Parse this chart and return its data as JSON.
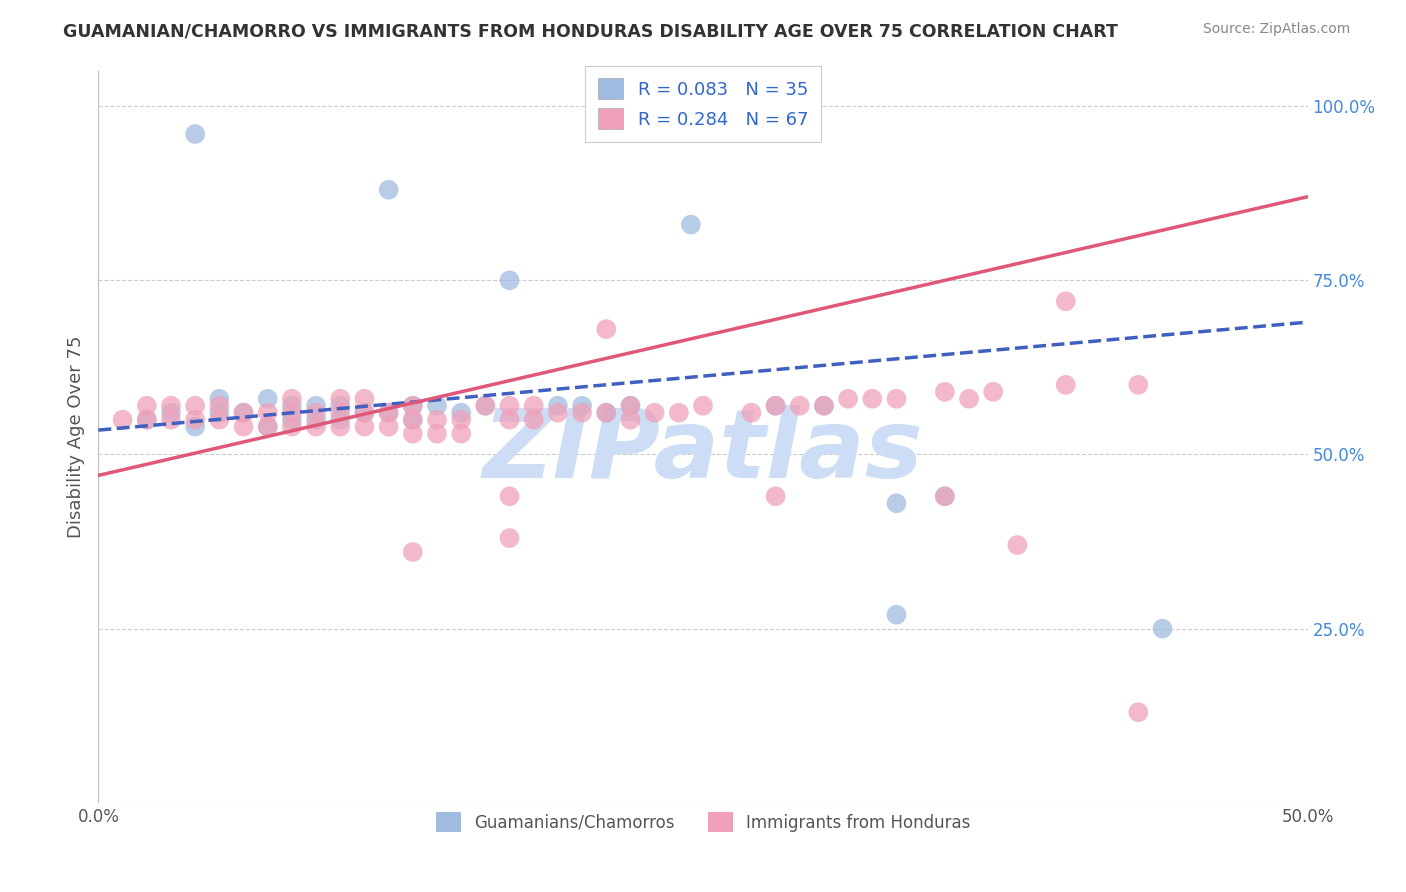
{
  "title": "GUAMANIAN/CHAMORRO VS IMMIGRANTS FROM HONDURAS DISABILITY AGE OVER 75 CORRELATION CHART",
  "source": "Source: ZipAtlas.com",
  "ylabel": "Disability Age Over 75",
  "xlim": [
    0.0,
    0.5
  ],
  "ylim": [
    0.0,
    1.05
  ],
  "ytick_positions": [
    0.25,
    0.5,
    0.75,
    1.0
  ],
  "blue_color": "#a0bce0",
  "pink_color": "#f0a0b8",
  "blue_line_color": "#4060c0",
  "pink_line_color": "#e05878",
  "grid_color": "#cccccc",
  "watermark_text": "ZIPatlas",
  "legend_label_blue": "R = 0.083   N = 35",
  "legend_label_pink": "R = 0.284   N = 67",
  "legend_color": "#3366cc",
  "bottom_label_blue": "Guamanians/Chamorros",
  "bottom_label_pink": "Immigrants from Honduras",
  "blue_x": [
    0.02,
    0.03,
    0.04,
    0.05,
    0.05,
    0.06,
    0.07,
    0.07,
    0.08,
    0.08,
    0.09,
    0.09,
    0.1,
    0.1,
    0.11,
    0.12,
    0.13,
    0.13,
    0.14,
    0.15,
    0.16,
    0.17,
    0.19,
    0.2,
    0.21,
    0.22,
    0.245,
    0.28,
    0.3,
    0.33,
    0.35,
    0.04,
    0.12,
    0.33,
    0.44
  ],
  "blue_y": [
    0.55,
    0.56,
    0.54,
    0.56,
    0.58,
    0.56,
    0.58,
    0.54,
    0.55,
    0.57,
    0.55,
    0.57,
    0.55,
    0.57,
    0.56,
    0.56,
    0.57,
    0.55,
    0.57,
    0.56,
    0.57,
    0.75,
    0.57,
    0.57,
    0.56,
    0.57,
    0.83,
    0.57,
    0.57,
    0.43,
    0.44,
    0.96,
    0.88,
    0.27,
    0.25
  ],
  "pink_x": [
    0.01,
    0.02,
    0.02,
    0.03,
    0.03,
    0.04,
    0.04,
    0.05,
    0.05,
    0.06,
    0.06,
    0.07,
    0.07,
    0.08,
    0.08,
    0.08,
    0.09,
    0.09,
    0.1,
    0.1,
    0.1,
    0.11,
    0.11,
    0.11,
    0.12,
    0.12,
    0.13,
    0.13,
    0.13,
    0.14,
    0.14,
    0.15,
    0.15,
    0.16,
    0.17,
    0.17,
    0.18,
    0.18,
    0.19,
    0.2,
    0.21,
    0.22,
    0.22,
    0.23,
    0.24,
    0.25,
    0.27,
    0.28,
    0.29,
    0.3,
    0.31,
    0.32,
    0.33,
    0.35,
    0.36,
    0.37,
    0.4,
    0.4,
    0.43,
    0.21,
    0.17,
    0.28,
    0.35,
    0.17,
    0.13,
    0.38,
    0.43
  ],
  "pink_y": [
    0.55,
    0.55,
    0.57,
    0.55,
    0.57,
    0.55,
    0.57,
    0.55,
    0.57,
    0.54,
    0.56,
    0.54,
    0.56,
    0.54,
    0.56,
    0.58,
    0.54,
    0.56,
    0.54,
    0.56,
    0.58,
    0.54,
    0.56,
    0.58,
    0.54,
    0.56,
    0.53,
    0.55,
    0.57,
    0.53,
    0.55,
    0.53,
    0.55,
    0.57,
    0.55,
    0.57,
    0.55,
    0.57,
    0.56,
    0.56,
    0.56,
    0.55,
    0.57,
    0.56,
    0.56,
    0.57,
    0.56,
    0.57,
    0.57,
    0.57,
    0.58,
    0.58,
    0.58,
    0.59,
    0.58,
    0.59,
    0.72,
    0.6,
    0.6,
    0.68,
    0.44,
    0.44,
    0.44,
    0.38,
    0.36,
    0.37,
    0.13
  ],
  "blue_trend_x": [
    0.0,
    0.5
  ],
  "blue_trend_y": [
    0.535,
    0.69
  ],
  "pink_trend_x": [
    0.0,
    0.5
  ],
  "pink_trend_y": [
    0.47,
    0.87
  ]
}
